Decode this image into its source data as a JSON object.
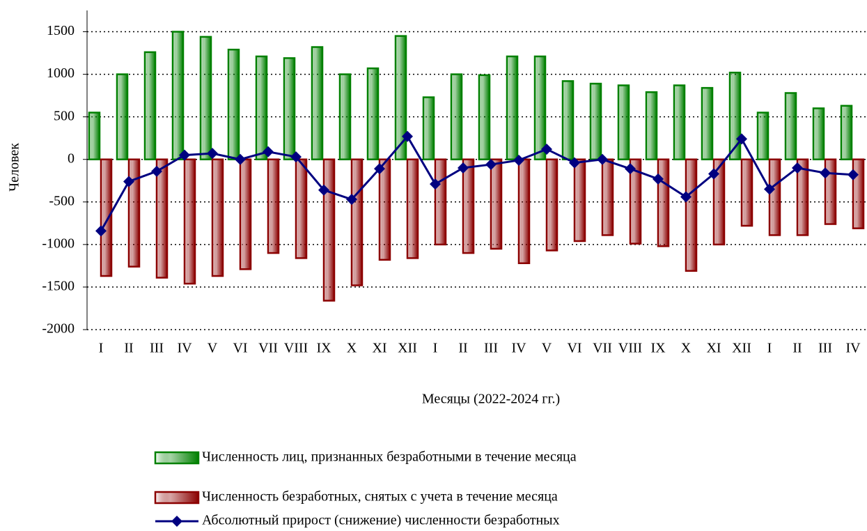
{
  "chart_data": {
    "type": "bar",
    "x_label": "Месяцы (2022-2024 гг.)",
    "y_label": "Человек",
    "categories": [
      "I",
      "II",
      "III",
      "IV",
      "V",
      "VI",
      "VII",
      "VIII",
      "IX",
      "X",
      "XI",
      "XII",
      "I",
      "II",
      "III",
      "IV",
      "V",
      "VI",
      "VII",
      "VIII",
      "IX",
      "X",
      "XI",
      "XII",
      "I",
      "II",
      "III",
      "IV"
    ],
    "ylim": [
      -2000,
      1750
    ],
    "yticks": [
      -2000,
      -1500,
      -1000,
      -500,
      0,
      500,
      1000,
      1500
    ],
    "grid": true,
    "legend": "bottom",
    "series": [
      {
        "name": "Численность лиц, признанных безработными в течение месяца",
        "type": "bar",
        "color": "#008000",
        "values": [
          550,
          1000,
          1260,
          1500,
          1440,
          1290,
          1210,
          1190,
          1320,
          1000,
          1070,
          1450,
          730,
          1000,
          990,
          1210,
          1210,
          920,
          890,
          870,
          790,
          870,
          840,
          1020,
          550,
          780,
          600,
          630
        ]
      },
      {
        "name": "Численность безработных, снятых с учета в течение месяца",
        "type": "bar",
        "color": "#8b0000",
        "values": [
          -1370,
          -1260,
          -1390,
          -1460,
          -1370,
          -1290,
          -1100,
          -1160,
          -1660,
          -1480,
          -1180,
          -1160,
          -1000,
          -1100,
          -1050,
          -1220,
          -1070,
          -960,
          -890,
          -990,
          -1020,
          -1310,
          -1000,
          -780,
          -890,
          -890,
          -760,
          -810
        ]
      },
      {
        "name": "Абсолютный прирост (снижение) численности безработных",
        "type": "line",
        "color": "#000080",
        "values": [
          -840,
          -260,
          -140,
          50,
          70,
          0,
          90,
          30,
          -360,
          -470,
          -110,
          270,
          -290,
          -100,
          -60,
          -10,
          120,
          -40,
          0,
          -110,
          -230,
          -440,
          -170,
          240,
          -350,
          -100,
          -160,
          -180
        ]
      }
    ]
  }
}
